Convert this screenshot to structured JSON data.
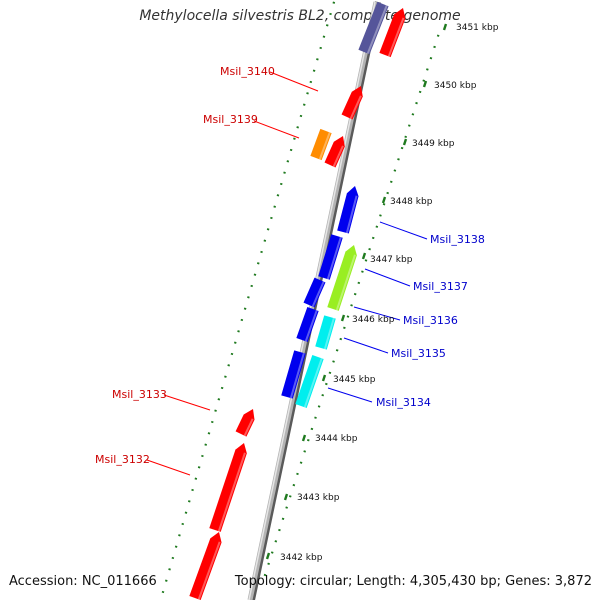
{
  "title": "Methylocella silvestris BL2, complete genome",
  "footer": {
    "accession": "Accession: NC_011666",
    "topology": "Topology: circular; Length: 4,305,430 bp; Genes: 3,872"
  },
  "colors": {
    "backbone": "#9a9a9a",
    "backbone_shadow": "#5a5a5a",
    "tick": "#1f7a1f",
    "red": "#ff0000",
    "blue": "#0000ee",
    "orange": "#ff8c00",
    "lime": "#99ee22",
    "cyan": "#00eeee",
    "slate": "#55559a",
    "label_left": "#cc0000",
    "label_right": "#0000cc"
  },
  "scale_labels": [
    "3451 kbp",
    "3450 kbp",
    "3449 kbp",
    "3448 kbp",
    "3447 kbp",
    "3446 kbp",
    "3445 kbp",
    "3444 kbp",
    "3443 kbp",
    "3442 kbp"
  ],
  "gene_labels_left": [
    "Msil_3140",
    "Msil_3139",
    "Msil_3133",
    "Msil_3132"
  ],
  "gene_labels_right": [
    "Msil_3138",
    "Msil_3137",
    "Msil_3136",
    "Msil_3135",
    "Msil_3134"
  ]
}
